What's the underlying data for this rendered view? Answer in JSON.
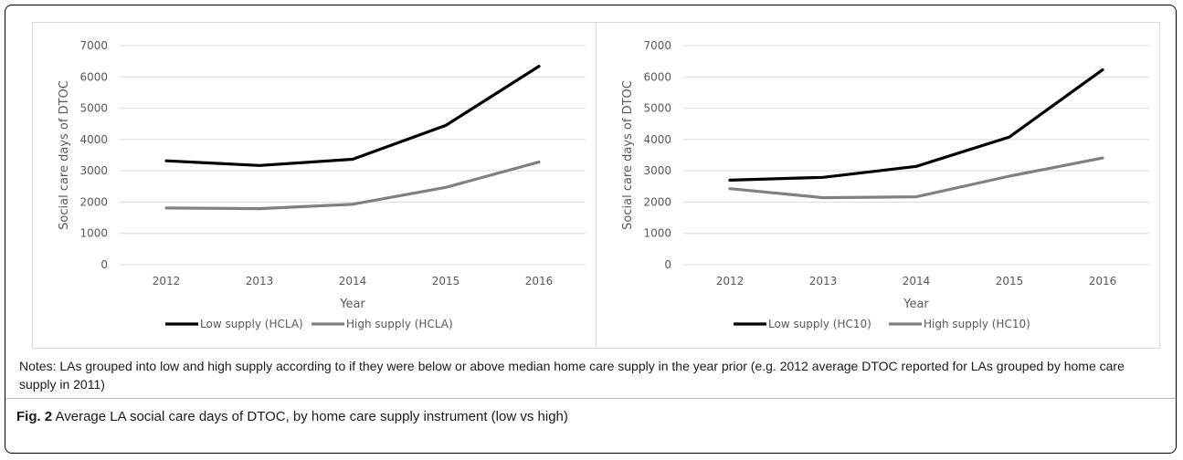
{
  "chart_data": [
    {
      "type": "line",
      "categories": [
        "2012",
        "2013",
        "2014",
        "2015",
        "2016"
      ],
      "xlabel": "Year",
      "ylabel": "Social care days of DTOC",
      "ylim": [
        0,
        7000
      ],
      "yticks": [
        "0",
        "1000",
        "2000",
        "3000",
        "4000",
        "5000",
        "6000",
        "7000"
      ],
      "grid": true,
      "legend_position": "bottom",
      "series": [
        {
          "name": "Low supply (HCLA)",
          "color": "#000000",
          "values": [
            3320,
            3170,
            3370,
            4450,
            6340
          ]
        },
        {
          "name": "High supply (HCLA)",
          "color": "#808080",
          "values": [
            1810,
            1790,
            1930,
            2470,
            3280
          ]
        }
      ]
    },
    {
      "type": "line",
      "categories": [
        "2012",
        "2013",
        "2014",
        "2015",
        "2016"
      ],
      "xlabel": "Year",
      "ylabel": "Social care days of DTOC",
      "ylim": [
        0,
        7000
      ],
      "yticks": [
        "0",
        "1000",
        "2000",
        "3000",
        "4000",
        "5000",
        "6000",
        "7000"
      ],
      "grid": true,
      "legend_position": "bottom",
      "series": [
        {
          "name": "Low supply (HC10)",
          "color": "#000000",
          "values": [
            2700,
            2790,
            3140,
            4080,
            6230
          ]
        },
        {
          "name": "High supply (HC10)",
          "color": "#808080",
          "values": [
            2430,
            2140,
            2170,
            2830,
            3410
          ]
        }
      ]
    }
  ],
  "notes": "Notes: LAs grouped into low and high supply according to if they were below or above median home care supply in the year prior (e.g. 2012 average DTOC reported for LAs grouped by home care supply in 2011)",
  "caption": {
    "label": "Fig. 2",
    "text": " Average LA social care days of DTOC, by home care supply instrument (low vs high)"
  }
}
